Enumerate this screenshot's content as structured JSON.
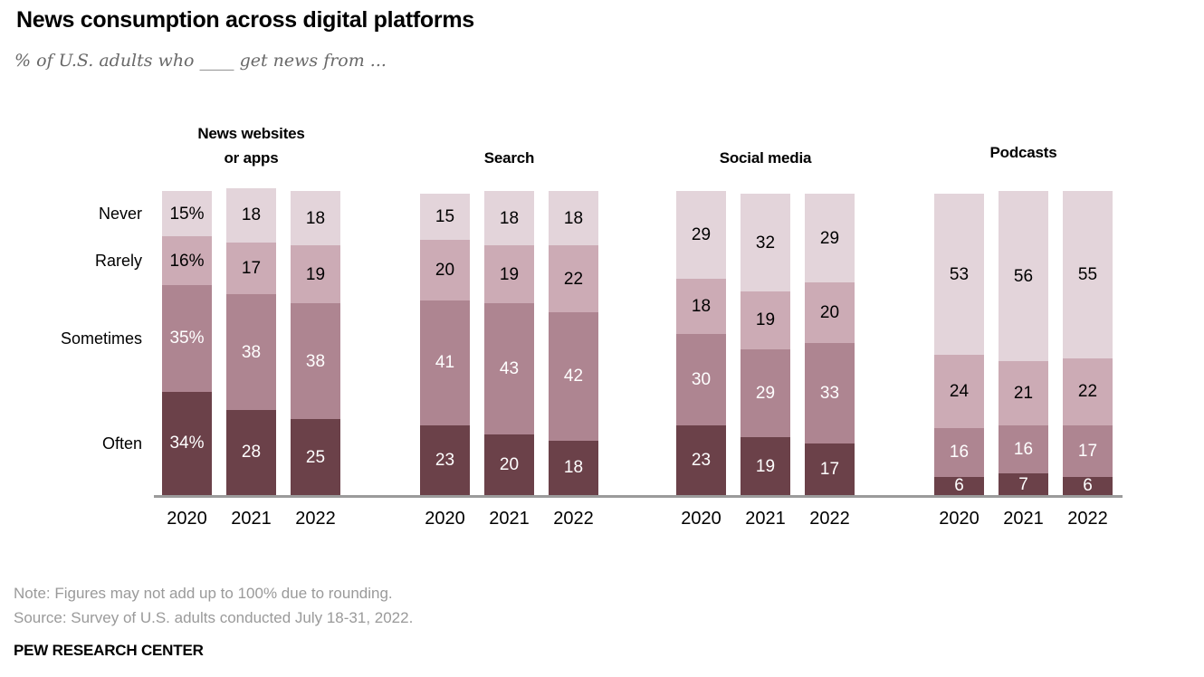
{
  "title": "News consumption across digital platforms",
  "subtitle": "% of U.S. adults who ____ get news from ...",
  "note": "Note: Figures may not add up to 100% due to rounding.",
  "source": "Source: Survey of U.S. adults conducted July 18-31, 2022.",
  "footer": "PEW RESEARCH CENTER",
  "chart_data": {
    "type": "bar",
    "stacked": true,
    "orientation": "vertical",
    "units": "percent of U.S. adults",
    "series_order": [
      "Never",
      "Rarely",
      "Sometimes",
      "Often"
    ],
    "segment_colors": [
      "#e3d4da",
      "#ccabb5",
      "#ae8591",
      "#6b4149"
    ],
    "value_label_colors": [
      "#000000",
      "#000000",
      "#ffffff",
      "#ffffff"
    ],
    "baseline_color": "#9b9b9b",
    "years": [
      "2020",
      "2021",
      "2022"
    ],
    "groups": [
      {
        "platform": "News websites or apps",
        "title_lines": [
          "News websites",
          "or apps"
        ],
        "bars": [
          {
            "year": "2020",
            "values": [
              15,
              16,
              35,
              34
            ],
            "suffix": "%"
          },
          {
            "year": "2021",
            "values": [
              18,
              17,
              38,
              28
            ],
            "suffix": ""
          },
          {
            "year": "2022",
            "values": [
              18,
              19,
              38,
              25
            ],
            "suffix": ""
          }
        ]
      },
      {
        "platform": "Search",
        "title_lines": [
          "Search"
        ],
        "bars": [
          {
            "year": "2020",
            "values": [
              15,
              20,
              41,
              23
            ],
            "suffix": ""
          },
          {
            "year": "2021",
            "values": [
              18,
              19,
              43,
              20
            ],
            "suffix": ""
          },
          {
            "year": "2022",
            "values": [
              18,
              22,
              42,
              18
            ],
            "suffix": ""
          }
        ]
      },
      {
        "platform": "Social media",
        "title_lines": [
          "Social media"
        ],
        "bars": [
          {
            "year": "2020",
            "values": [
              29,
              18,
              30,
              23
            ],
            "suffix": ""
          },
          {
            "year": "2021",
            "values": [
              32,
              19,
              29,
              19
            ],
            "suffix": ""
          },
          {
            "year": "2022",
            "values": [
              29,
              20,
              33,
              17
            ],
            "suffix": ""
          }
        ]
      },
      {
        "platform": "Podcasts",
        "title_lines": [
          "Podcasts"
        ],
        "bars": [
          {
            "year": "2020",
            "values": [
              53,
              24,
              16,
              6
            ],
            "suffix": ""
          },
          {
            "year": "2021",
            "values": [
              56,
              21,
              16,
              7
            ],
            "suffix": ""
          },
          {
            "year": "2022",
            "values": [
              55,
              22,
              17,
              6
            ],
            "suffix": ""
          }
        ]
      }
    ]
  }
}
